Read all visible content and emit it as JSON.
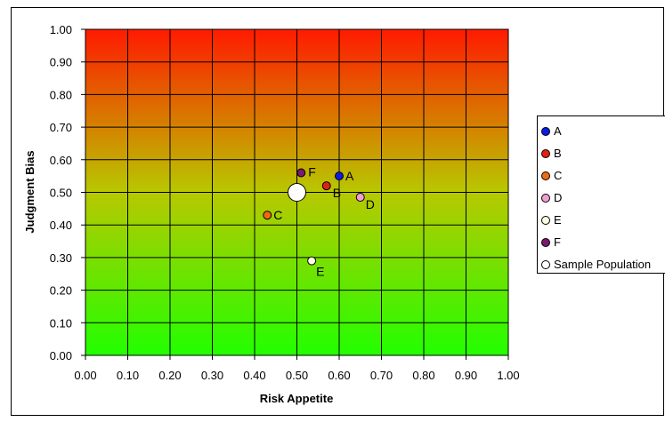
{
  "chart_data": {
    "type": "scatter",
    "title": "",
    "xlabel": "Risk Appetite",
    "ylabel": "Judgment Bias",
    "xlim": [
      0,
      1
    ],
    "ylim": [
      0,
      1
    ],
    "x_ticks": [
      "0.00",
      "0.10",
      "0.20",
      "0.30",
      "0.40",
      "0.50",
      "0.60",
      "0.70",
      "0.80",
      "0.90",
      "1.00"
    ],
    "y_ticks": [
      "0.00",
      "0.10",
      "0.20",
      "0.30",
      "0.40",
      "0.50",
      "0.60",
      "0.70",
      "0.80",
      "0.90",
      "1.00"
    ],
    "grid": true,
    "background_gradient": {
      "top": "#ff1a00",
      "middle": "#b8c800",
      "bottom": "#22ff00"
    },
    "legend_position": "right",
    "series": [
      {
        "name": "A",
        "color": "#0a1ee0",
        "x": 0.6,
        "y": 0.55,
        "label": "A"
      },
      {
        "name": "B",
        "color": "#e02010",
        "x": 0.57,
        "y": 0.52,
        "label": "B"
      },
      {
        "name": "C",
        "color": "#f06a10",
        "x": 0.43,
        "y": 0.43,
        "label": "C"
      },
      {
        "name": "D",
        "color": "#f0a0d0",
        "x": 0.65,
        "y": 0.485,
        "label": "D"
      },
      {
        "name": "E",
        "color": "#fffde0",
        "x": 0.535,
        "y": 0.29,
        "label": "E"
      },
      {
        "name": "F",
        "color": "#7a1a6e",
        "x": 0.51,
        "y": 0.56,
        "label": "F"
      },
      {
        "name": "Sample Population",
        "color": "#ffffff",
        "x": 0.5,
        "y": 0.5,
        "label": "",
        "large": true
      }
    ]
  }
}
